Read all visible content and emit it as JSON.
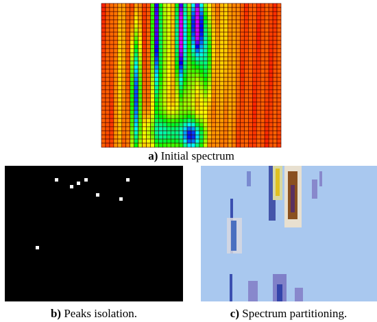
{
  "figures": [
    {
      "label": "a)",
      "caption": "Initial spectrum"
    },
    {
      "label": "b)",
      "caption": "Peaks isolation."
    },
    {
      "label": "c)",
      "caption": "Spectrum partitioning."
    }
  ]
}
